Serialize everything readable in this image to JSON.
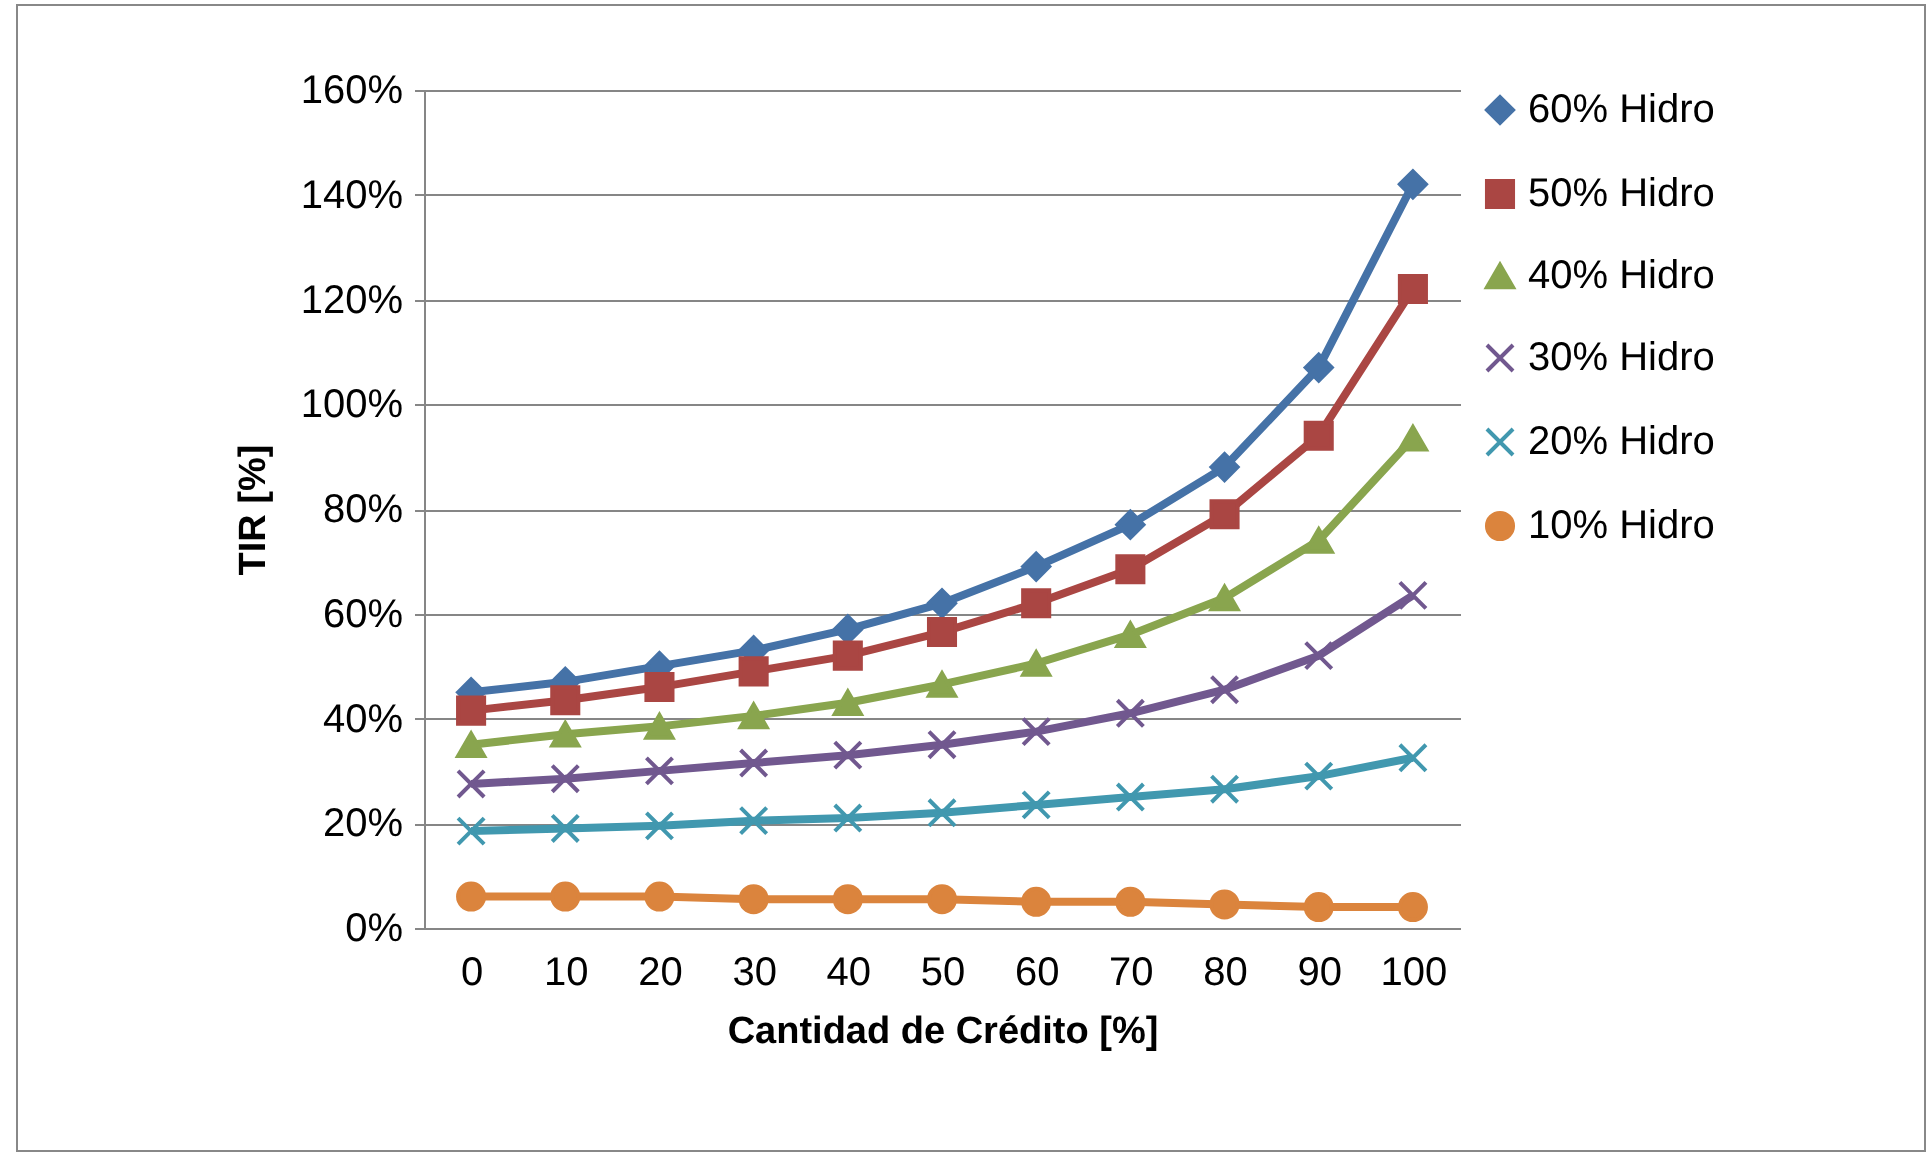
{
  "chart_data": {
    "type": "line",
    "xlabel": "Cantidad de Crédito [%]",
    "ylabel": "TIR [%]",
    "categories": [
      "0",
      "10",
      "20",
      "30",
      "40",
      "50",
      "60",
      "70",
      "80",
      "90",
      "100"
    ],
    "ylim": [
      0,
      160
    ],
    "yticks": [
      {
        "value": 0,
        "label": "0%"
      },
      {
        "value": 20,
        "label": "20%"
      },
      {
        "value": 40,
        "label": "40%"
      },
      {
        "value": 60,
        "label": "60%"
      },
      {
        "value": 80,
        "label": "80%"
      },
      {
        "value": 100,
        "label": "100%"
      },
      {
        "value": 120,
        "label": "120%"
      },
      {
        "value": 140,
        "label": "140%"
      },
      {
        "value": 160,
        "label": "160%"
      }
    ],
    "grid": "y",
    "legend": "right",
    "line_style": "solid",
    "series": [
      {
        "name": "60% Hidro",
        "color": "#4572a7",
        "marker": "diamond",
        "values": [
          45,
          47,
          50,
          53,
          57,
          62,
          69,
          77,
          88,
          107,
          142
        ]
      },
      {
        "name": "50% Hidro",
        "color": "#aa4643",
        "marker": "square",
        "values": [
          41.5,
          43.5,
          46,
          49,
          52,
          56.5,
          62,
          68.5,
          79,
          94,
          122
        ]
      },
      {
        "name": "40% Hidro",
        "color": "#89a54e",
        "marker": "triangle",
        "values": [
          35,
          37,
          38.5,
          40.5,
          43,
          46.5,
          50.5,
          56,
          63,
          74,
          93.5
        ]
      },
      {
        "name": "30% Hidro",
        "color": "#71588f",
        "marker": "cross",
        "values": [
          27.5,
          28.5,
          30,
          31.5,
          33,
          35,
          37.5,
          41,
          45.5,
          52,
          63.5
        ]
      },
      {
        "name": "20% Hidro",
        "color": "#4198af",
        "marker": "cross",
        "values": [
          18.5,
          19,
          19.5,
          20.5,
          21,
          22,
          23.5,
          25,
          26.5,
          29,
          32.5
        ]
      },
      {
        "name": "10% Hidro",
        "color": "#db843d",
        "marker": "circle",
        "values": [
          6,
          6,
          6,
          5.5,
          5.5,
          5.5,
          5,
          5,
          4.5,
          4,
          4
        ]
      }
    ]
  }
}
